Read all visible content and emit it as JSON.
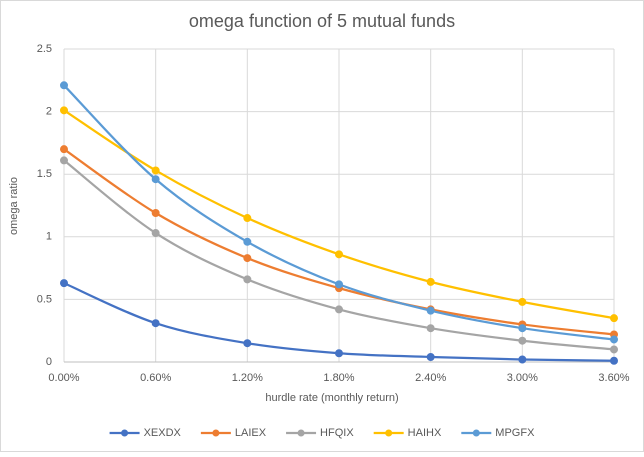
{
  "chart_data": {
    "type": "line",
    "title": "omega function of 5 mutual funds",
    "x_label": "hurdle rate (monthly return)",
    "y_label": "omega ratio",
    "categories": [
      "0.00%",
      "0.60%",
      "1.20%",
      "1.80%",
      "2.40%",
      "3.00%",
      "3.60%"
    ],
    "series": [
      {
        "name": "XEXDX",
        "color": "#4472c4",
        "values": [
          0.63,
          0.31,
          0.15,
          0.07,
          0.04,
          0.02,
          0.01
        ]
      },
      {
        "name": "LAIEX",
        "color": "#ed7d31",
        "values": [
          1.7,
          1.19,
          0.83,
          0.59,
          0.42,
          0.3,
          0.22
        ]
      },
      {
        "name": "HFQIX",
        "color": "#a5a5a5",
        "values": [
          1.61,
          1.03,
          0.66,
          0.42,
          0.27,
          0.17,
          0.1
        ]
      },
      {
        "name": "HAIHX",
        "color": "#ffc000",
        "values": [
          2.01,
          1.53,
          1.15,
          0.86,
          0.64,
          0.48,
          0.35
        ]
      },
      {
        "name": "MPGFX",
        "color": "#5b9bd5",
        "values": [
          2.21,
          1.46,
          0.96,
          0.62,
          0.41,
          0.27,
          0.18
        ]
      }
    ],
    "ylim": [
      0,
      2.5
    ],
    "yticks": [
      0,
      0.5,
      1,
      1.5,
      2,
      2.5
    ],
    "grid": true,
    "smooth": true,
    "legend": "bottom"
  }
}
